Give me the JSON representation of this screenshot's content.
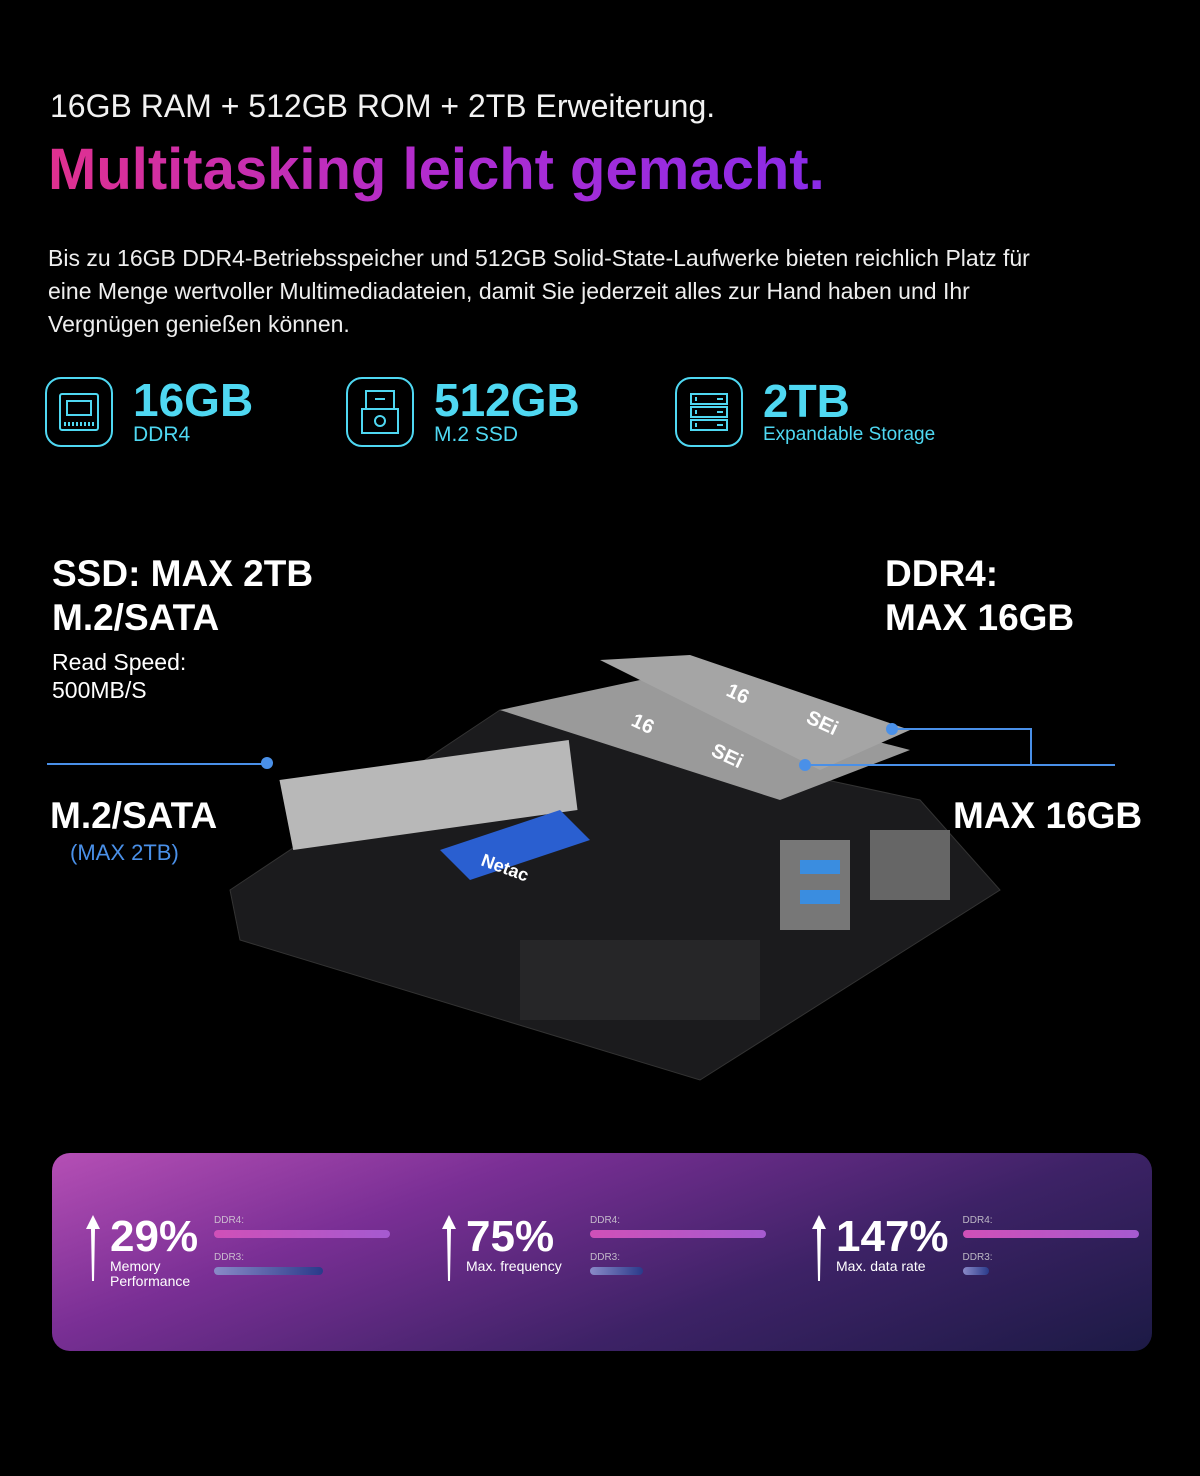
{
  "header": {
    "subtitle": "16GB RAM + 512GB ROM + 2TB Erweiterung.",
    "title": "Multitasking leicht gemacht.",
    "description": "Bis zu 16GB DDR4-Betriebsspeicher und 512GB Solid-State-Laufwerke bieten reichlich Platz für eine Menge wertvoller Multimediadateien, damit Sie jederzeit alles zur Hand haben und Ihr Vergnügen genießen können."
  },
  "specs": [
    {
      "icon": "ram-icon",
      "value": "16GB",
      "label": "DDR4"
    },
    {
      "icon": "ssd-icon",
      "value": "512GB",
      "label": "M.2 SSD"
    },
    {
      "icon": "server-storage-icon",
      "value": "2TB",
      "label": "Expandable Storage"
    }
  ],
  "diagram": {
    "ssd_title1": "SSD: MAX 2TB",
    "ssd_title2": "M.2/SATA",
    "read_label": "Read Speed:",
    "read_value": "500MB/S",
    "ddr_title1": "DDR4:",
    "ddr_title2": "MAX 16GB",
    "m2_label": "M.2/SATA",
    "m2_max": "(MAX 2TB)",
    "ram_max": "MAX 16GB",
    "board_text": [
      "16",
      "SEi",
      "16",
      "SEi",
      "Netac"
    ]
  },
  "colors": {
    "accent": "#4fd8f2",
    "title_gradient": [
      "#e0308f",
      "#8a2be8"
    ],
    "callout": "#4a90e8"
  },
  "stats": [
    {
      "percent": "29%",
      "caption": "Memory Performance",
      "ddr4_label": "DDR4:",
      "ddr3_label": "DDR3:",
      "ddr4_level": 1.0,
      "ddr3_level": 0.62
    },
    {
      "percent": "75%",
      "caption": "Max. frequency",
      "ddr4_label": "DDR4:",
      "ddr3_label": "DDR3:",
      "ddr4_level": 1.0,
      "ddr3_level": 0.3
    },
    {
      "percent": "147%",
      "caption": "Max. data rate",
      "ddr4_label": "DDR4:",
      "ddr3_label": "DDR3:",
      "ddr4_level": 1.0,
      "ddr3_level": 0.15
    }
  ]
}
